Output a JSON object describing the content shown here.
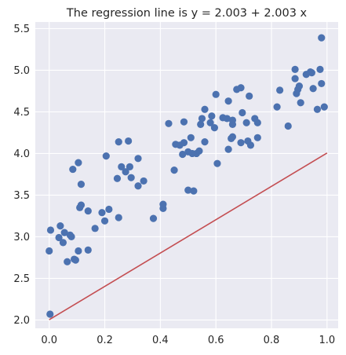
{
  "chart_data": {
    "type": "scatter",
    "title": "The regression line is y = 2.003 + 2.003 x",
    "xlabel": "",
    "ylabel": "",
    "xlim": [
      -0.05,
      1.04
    ],
    "ylim": [
      1.9,
      5.58
    ],
    "x_ticks": [
      0.0,
      0.2,
      0.4,
      0.6,
      0.8,
      1.0
    ],
    "x_tick_labels": [
      "0.0",
      "0.2",
      "0.4",
      "0.6",
      "0.8",
      "1.0"
    ],
    "y_ticks": [
      2.0,
      2.5,
      3.0,
      3.5,
      4.0,
      4.5,
      5.0,
      5.5
    ],
    "y_tick_labels": [
      "2.0",
      "2.5",
      "3.0",
      "3.5",
      "4.0",
      "4.5",
      "5.0",
      "5.5"
    ],
    "grid": true,
    "colors": {
      "background": "#eaeaf2",
      "grid": "#ffffff",
      "points": "#4c72b0",
      "line": "#c44e52"
    },
    "regression_line": {
      "intercept": 2.003,
      "slope": 2.003,
      "x_range": [
        0.0,
        1.0
      ]
    },
    "points": [
      [
        0.0,
        2.83
      ],
      [
        0.003,
        2.07
      ],
      [
        0.005,
        3.08
      ],
      [
        0.035,
        2.99
      ],
      [
        0.04,
        3.13
      ],
      [
        0.05,
        2.93
      ],
      [
        0.055,
        3.05
      ],
      [
        0.065,
        2.7
      ],
      [
        0.075,
        3.02
      ],
      [
        0.08,
        3.0
      ],
      [
        0.085,
        3.81
      ],
      [
        0.09,
        2.73
      ],
      [
        0.095,
        2.72
      ],
      [
        0.105,
        2.83
      ],
      [
        0.105,
        3.89
      ],
      [
        0.11,
        3.35
      ],
      [
        0.115,
        3.38
      ],
      [
        0.115,
        3.63
      ],
      [
        0.14,
        2.84
      ],
      [
        0.14,
        3.31
      ],
      [
        0.165,
        3.1
      ],
      [
        0.19,
        3.29
      ],
      [
        0.2,
        3.19
      ],
      [
        0.205,
        3.97
      ],
      [
        0.215,
        3.33
      ],
      [
        0.245,
        3.7
      ],
      [
        0.25,
        3.23
      ],
      [
        0.25,
        4.14
      ],
      [
        0.26,
        3.84
      ],
      [
        0.275,
        3.78
      ],
      [
        0.285,
        4.15
      ],
      [
        0.29,
        3.84
      ],
      [
        0.295,
        3.71
      ],
      [
        0.32,
        3.61
      ],
      [
        0.32,
        3.94
      ],
      [
        0.34,
        3.67
      ],
      [
        0.375,
        3.22
      ],
      [
        0.41,
        3.34
      ],
      [
        0.41,
        3.39
      ],
      [
        0.43,
        4.36
      ],
      [
        0.45,
        3.8
      ],
      [
        0.455,
        4.11
      ],
      [
        0.47,
        4.1
      ],
      [
        0.48,
        3.99
      ],
      [
        0.485,
        4.13
      ],
      [
        0.485,
        4.38
      ],
      [
        0.5,
        3.56
      ],
      [
        0.5,
        4.02
      ],
      [
        0.51,
        4.19
      ],
      [
        0.515,
        4.0
      ],
      [
        0.52,
        3.55
      ],
      [
        0.53,
        4.0
      ],
      [
        0.54,
        4.03
      ],
      [
        0.545,
        4.35
      ],
      [
        0.55,
        4.42
      ],
      [
        0.56,
        4.14
      ],
      [
        0.56,
        4.53
      ],
      [
        0.58,
        4.37
      ],
      [
        0.585,
        4.45
      ],
      [
        0.595,
        4.31
      ],
      [
        0.6,
        4.71
      ],
      [
        0.605,
        3.88
      ],
      [
        0.625,
        4.43
      ],
      [
        0.64,
        4.42
      ],
      [
        0.645,
        4.63
      ],
      [
        0.645,
        4.05
      ],
      [
        0.655,
        4.18
      ],
      [
        0.66,
        4.35
      ],
      [
        0.66,
        4.4
      ],
      [
        0.66,
        4.2
      ],
      [
        0.675,
        4.77
      ],
      [
        0.69,
        4.79
      ],
      [
        0.69,
        4.13
      ],
      [
        0.695,
        4.49
      ],
      [
        0.71,
        4.37
      ],
      [
        0.715,
        4.15
      ],
      [
        0.72,
        4.69
      ],
      [
        0.725,
        4.1
      ],
      [
        0.74,
        4.42
      ],
      [
        0.75,
        4.37
      ],
      [
        0.75,
        4.19
      ],
      [
        0.82,
        4.56
      ],
      [
        0.83,
        4.76
      ],
      [
        0.86,
        4.33
      ],
      [
        0.885,
        4.9
      ],
      [
        0.885,
        5.01
      ],
      [
        0.89,
        4.72
      ],
      [
        0.895,
        4.77
      ],
      [
        0.9,
        4.81
      ],
      [
        0.905,
        4.61
      ],
      [
        0.925,
        4.95
      ],
      [
        0.94,
        4.98
      ],
      [
        0.945,
        4.97
      ],
      [
        0.95,
        4.78
      ],
      [
        0.965,
        4.53
      ],
      [
        0.975,
        5.01
      ],
      [
        0.98,
        4.84
      ],
      [
        0.98,
        5.39
      ],
      [
        0.99,
        4.56
      ]
    ]
  }
}
